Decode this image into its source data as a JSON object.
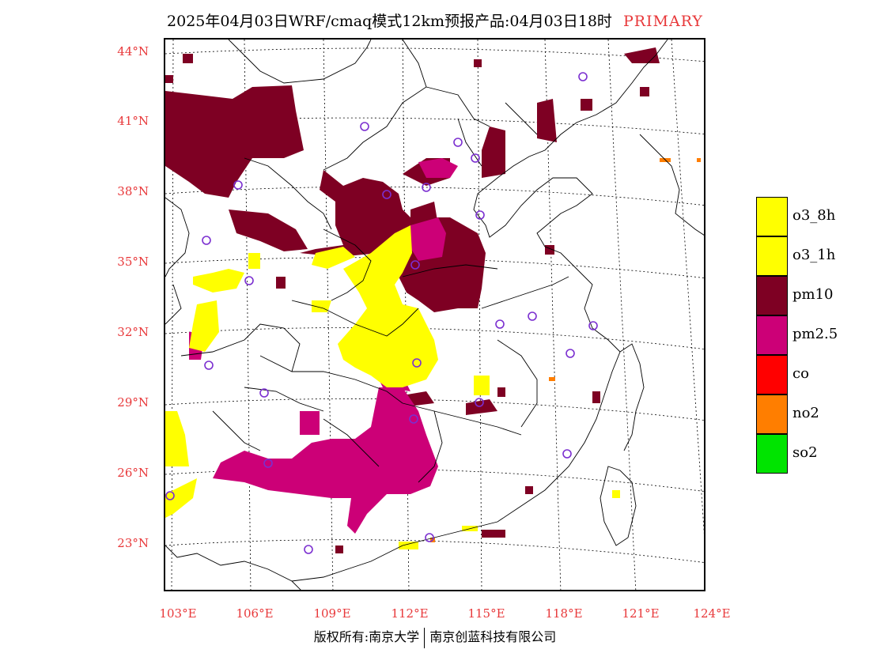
{
  "title": {
    "text": "2025年04月03日WRF/cmaq模式12km预报产品:04月03日18时",
    "tag": "PRIMARY"
  },
  "lat_labels": [
    "44°N",
    "41°N",
    "38°N",
    "35°N",
    "32°N",
    "29°N",
    "26°N",
    "23°N"
  ],
  "lon_labels": [
    "103°E",
    "106°E",
    "109°E",
    "112°E",
    "115°E",
    "118°E",
    "121°E",
    "124°E"
  ],
  "legend": [
    {
      "label": "o3_8h",
      "color": "#ffff00"
    },
    {
      "label": "o3_1h",
      "color": "#ffff00"
    },
    {
      "label": "pm10",
      "color": "#7e0023"
    },
    {
      "label": "pm2.5",
      "color": "#cc0077"
    },
    {
      "label": "co",
      "color": "#ff0000"
    },
    {
      "label": "no2",
      "color": "#ff7e00"
    },
    {
      "label": "so2",
      "color": "#00e400"
    }
  ],
  "copyright": {
    "left": "版权所有:南京大学",
    "right": "南京创蓝科技有限公司"
  },
  "colors": {
    "pm10": "#7e0023",
    "pm25": "#cc0077",
    "o3": "#ffff00",
    "no2": "#ff7e00",
    "station": "#7b2fd0",
    "axis_text": "#e8383a"
  }
}
